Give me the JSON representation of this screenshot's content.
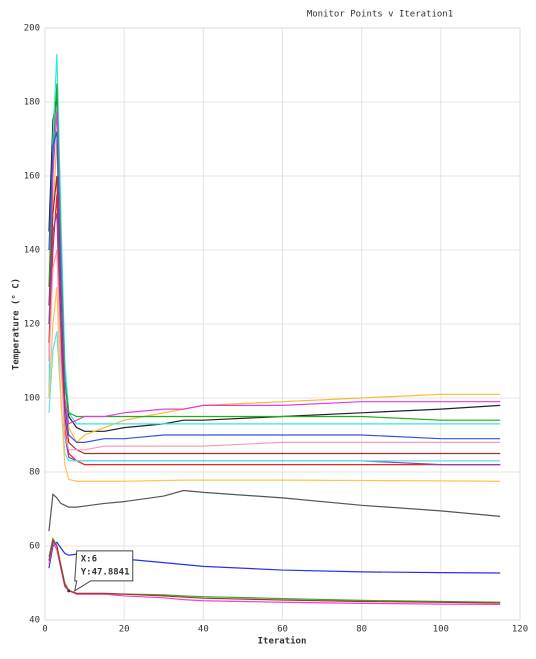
{
  "chart_data": {
    "type": "line",
    "title": "Monitor Points v Iteration1",
    "x_label": "Iteration",
    "y_label": "Temperature (° C)",
    "x": [
      1,
      2,
      3,
      4,
      5,
      6,
      8,
      10,
      15,
      20,
      30,
      35,
      40,
      60,
      80,
      100,
      115
    ],
    "xlim": [
      0,
      120
    ],
    "xticks": [
      0,
      20,
      40,
      60,
      80,
      100,
      120
    ],
    "ylim": [
      40,
      200
    ],
    "yticks": [
      40,
      60,
      80,
      100,
      120,
      140,
      160,
      180,
      200
    ],
    "grid": true,
    "series": [
      {
        "color": "#222222",
        "values": [
          145,
          175,
          182,
          140,
          105,
          95,
          92,
          91,
          91,
          92,
          93,
          94,
          94,
          95,
          96,
          97,
          98
        ]
      },
      {
        "color": "#ffb733",
        "values": [
          120,
          150,
          170,
          130,
          100,
          92,
          88,
          90,
          92,
          94,
          96,
          97,
          98,
          99,
          100,
          101,
          101
        ]
      },
      {
        "color": "#33e6e6",
        "values": [
          100,
          170,
          193,
          150,
          110,
          96,
          93,
          93,
          93,
          93,
          93,
          93,
          93,
          93,
          93,
          93,
          93
        ]
      },
      {
        "color": "#22aa22",
        "values": [
          130,
          165,
          185,
          140,
          105,
          96,
          95,
          95,
          95,
          95,
          95,
          95,
          95,
          95,
          95,
          94,
          94
        ]
      },
      {
        "color": "#e040e0",
        "values": [
          110,
          160,
          178,
          135,
          100,
          93,
          94,
          95,
          95,
          96,
          97,
          97,
          98,
          98,
          99,
          99,
          99
        ]
      },
      {
        "color": "#3355dd",
        "values": [
          140,
          168,
          172,
          130,
          98,
          90,
          88,
          88,
          89,
          89,
          90,
          90,
          90,
          90,
          90,
          89,
          89
        ]
      },
      {
        "color": "#993333",
        "values": [
          125,
          150,
          160,
          120,
          95,
          88,
          86,
          85,
          85,
          85,
          85,
          85,
          85,
          85,
          85,
          85,
          85
        ]
      },
      {
        "color": "#ee2222",
        "values": [
          115,
          140,
          155,
          118,
          92,
          85,
          83,
          82,
          82,
          82,
          82,
          82,
          82,
          82,
          82,
          82,
          82
        ]
      },
      {
        "color": "#8844aa",
        "values": [
          120,
          145,
          150,
          112,
          90,
          84,
          83,
          83,
          83,
          83,
          83,
          83,
          83,
          83,
          83,
          82,
          82
        ]
      },
      {
        "color": "#ff99bb",
        "values": [
          110,
          135,
          140,
          110,
          90,
          86,
          86,
          86,
          87,
          87,
          87,
          87,
          87,
          88,
          88,
          88,
          88
        ]
      },
      {
        "color": "#66ddee",
        "values": [
          96,
          113,
          118,
          100,
          85,
          83,
          83,
          83,
          83,
          83,
          83,
          83,
          83,
          83,
          83,
          83,
          83
        ]
      },
      {
        "color": "#ffc44d",
        "values": [
          100,
          120,
          130,
          100,
          82,
          78,
          77.5,
          77.5,
          77.5,
          77.5,
          77.7,
          77.8,
          77.8,
          77.8,
          77.7,
          77.6,
          77.5
        ]
      },
      {
        "color": "#555555",
        "values": [
          64,
          74,
          73,
          71.5,
          71,
          70.5,
          70.5,
          70.8,
          71.5,
          72,
          73.5,
          75,
          74.5,
          73,
          71,
          69.5,
          68
        ]
      },
      {
        "color": "#2233ee",
        "values": [
          54,
          60,
          61,
          59.5,
          58,
          57.5,
          57.8,
          57.5,
          57,
          56.5,
          55.5,
          55,
          54.5,
          53.5,
          53,
          52.8,
          52.7
        ]
      },
      {
        "color": "#33aa33",
        "values": [
          57,
          62,
          60,
          55,
          50,
          48,
          47,
          47,
          47,
          47,
          46.8,
          46.5,
          46.3,
          45.8,
          45.3,
          45,
          44.8
        ]
      },
      {
        "color": "#ee44cc",
        "values": [
          55,
          61,
          59,
          54,
          49,
          47.9,
          47,
          47,
          47,
          46.5,
          46,
          45.5,
          45.2,
          44.8,
          44.5,
          44.3,
          44.2
        ]
      },
      {
        "color": "#aa3333",
        "values": [
          56,
          61.5,
          60,
          54.5,
          49.5,
          48,
          47.2,
          47.2,
          47.2,
          47,
          46.5,
          46.2,
          45.9,
          45.4,
          45,
          44.8,
          44.6
        ]
      }
    ],
    "annotation": {
      "x": 6,
      "y": 47.8841,
      "lines": [
        "X:6",
        "Y:47.8841"
      ]
    }
  }
}
